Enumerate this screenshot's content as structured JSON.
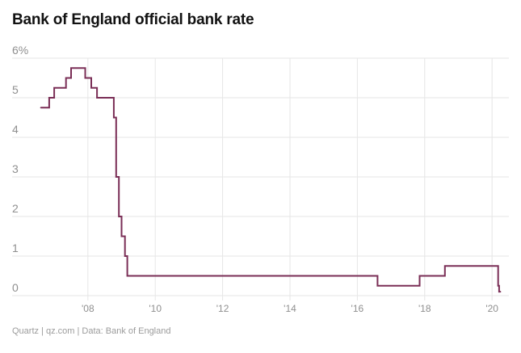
{
  "title": "Bank of England official bank rate",
  "footer": "Quartz | qz.com | Data: Bank of England",
  "chart_data": {
    "type": "line",
    "step": true,
    "title": "Bank of England official bank rate",
    "xlabel": "",
    "ylabel": "",
    "ylim": [
      0,
      6
    ],
    "xlim": [
      2005.75,
      2020.5
    ],
    "grid": true,
    "y_ticks": [
      {
        "value": 0,
        "label": "0"
      },
      {
        "value": 1,
        "label": "1"
      },
      {
        "value": 2,
        "label": "2"
      },
      {
        "value": 3,
        "label": "3"
      },
      {
        "value": 4,
        "label": "4"
      },
      {
        "value": 5,
        "label": "5"
      },
      {
        "value": 6,
        "label": "6%"
      }
    ],
    "x_ticks": [
      {
        "value": 2008,
        "label": "'08"
      },
      {
        "value": 2010,
        "label": "'10"
      },
      {
        "value": 2012,
        "label": "'12"
      },
      {
        "value": 2014,
        "label": "'14"
      },
      {
        "value": 2016,
        "label": "'16"
      },
      {
        "value": 2018,
        "label": "'18"
      },
      {
        "value": 2020,
        "label": "'20"
      }
    ],
    "series": [
      {
        "color": "#7a2e56",
        "points": [
          {
            "x": 2006.6,
            "y": 4.75
          },
          {
            "x": 2006.85,
            "y": 5.0
          },
          {
            "x": 2007.0,
            "y": 5.25
          },
          {
            "x": 2007.35,
            "y": 5.5
          },
          {
            "x": 2007.5,
            "y": 5.75
          },
          {
            "x": 2007.92,
            "y": 5.5
          },
          {
            "x": 2008.1,
            "y": 5.25
          },
          {
            "x": 2008.27,
            "y": 5.0
          },
          {
            "x": 2008.77,
            "y": 4.5
          },
          {
            "x": 2008.84,
            "y": 3.0
          },
          {
            "x": 2008.92,
            "y": 2.0
          },
          {
            "x": 2009.0,
            "y": 1.5
          },
          {
            "x": 2009.1,
            "y": 1.0
          },
          {
            "x": 2009.17,
            "y": 0.5
          },
          {
            "x": 2016.6,
            "y": 0.25
          },
          {
            "x": 2017.85,
            "y": 0.5
          },
          {
            "x": 2018.6,
            "y": 0.75
          },
          {
            "x": 2020.18,
            "y": 0.25
          },
          {
            "x": 2020.21,
            "y": 0.1
          },
          {
            "x": 2020.25,
            "y": 0.1
          }
        ]
      }
    ]
  }
}
